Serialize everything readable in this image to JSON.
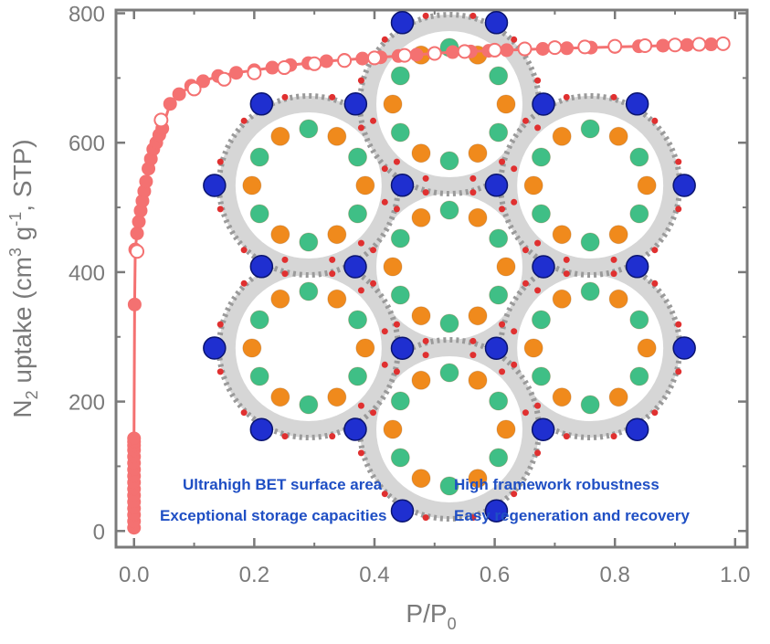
{
  "chart_data": {
    "type": "scatter",
    "xlabel": "P/P0",
    "ylabel": "N2 uptake (cm3 g-1, STP)",
    "xlim": [
      -0.03,
      1.02
    ],
    "ylim": [
      -25,
      805
    ],
    "x_ticks": [
      "0.0",
      "0.2",
      "0.4",
      "0.6",
      "0.8",
      "1.0"
    ],
    "y_ticks": [
      "0",
      "200",
      "400",
      "600",
      "800"
    ],
    "x_tick_values": [
      0,
      0.2,
      0.4,
      0.6,
      0.8,
      1.0
    ],
    "y_tick_values": [
      0,
      200,
      400,
      600,
      800
    ],
    "series": [
      {
        "color": "#f47171",
        "marker": "filled",
        "x": [
          0.0,
          0.0,
          0.0,
          0.0,
          0.0,
          0.0,
          0.0,
          0.0,
          0.0,
          0.0,
          0.0,
          0.0,
          0.0,
          0.0,
          0.0,
          0.0,
          0.001,
          0.002,
          0.005,
          0.008,
          0.011,
          0.014,
          0.017,
          0.02,
          0.024,
          0.028,
          0.032,
          0.037,
          0.042,
          0.047,
          0.06,
          0.075,
          0.095,
          0.115,
          0.14,
          0.17,
          0.2,
          0.23,
          0.26,
          0.29,
          0.32,
          0.35,
          0.38,
          0.41,
          0.44,
          0.47,
          0.5,
          0.53,
          0.56,
          0.59,
          0.62,
          0.65,
          0.68,
          0.72,
          0.76,
          0.8,
          0.84,
          0.88,
          0.92,
          0.96
        ],
        "y": [
          5,
          15,
          25,
          35,
          45,
          55,
          65,
          75,
          85,
          95,
          105,
          115,
          125,
          132,
          138,
          143,
          350,
          435,
          460,
          478,
          495,
          510,
          525,
          540,
          560,
          575,
          590,
          600,
          612,
          622,
          660,
          675,
          688,
          695,
          703,
          708,
          712,
          716,
          720,
          723,
          726,
          728,
          730,
          732,
          734,
          736,
          738,
          740,
          741,
          742,
          743,
          744,
          745,
          746,
          747,
          748,
          749,
          750,
          751,
          752
        ]
      },
      {
        "color": "#f47171",
        "marker": "open",
        "x": [
          0.005,
          0.045,
          0.1,
          0.15,
          0.2,
          0.25,
          0.3,
          0.35,
          0.4,
          0.45,
          0.5,
          0.55,
          0.6,
          0.65,
          0.7,
          0.75,
          0.8,
          0.85,
          0.9,
          0.94,
          0.98
        ],
        "y": [
          432,
          635,
          683,
          698,
          708,
          716,
          722,
          727,
          731,
          735,
          738,
          741,
          743,
          745,
          747,
          748,
          749,
          750,
          751,
          752,
          753
        ]
      }
    ]
  },
  "axes": {
    "x_title": "P/P",
    "x_sub": "0",
    "y_title_pre": "N",
    "y_sub": "2",
    "y_title_mid": " uptake (cm",
    "y_sup1": "3",
    "y_title_g": " g",
    "y_sup2": "-1",
    "y_title_post": ", STP)"
  },
  "annotations": {
    "line1_left": "Ultrahigh  BET surface area",
    "line1_right": "High framework robustness",
    "line2_left": "Exceptional storage capacities",
    "line2_right": "Easy regeneration and recovery"
  },
  "colors": {
    "axis": "#7a7a7a",
    "series": "#f47171",
    "feature_text": "#1f4fc4",
    "struct_blue": "#1f2fd0",
    "struct_orange": "#f08a1c",
    "struct_green": "#3fbf86"
  }
}
